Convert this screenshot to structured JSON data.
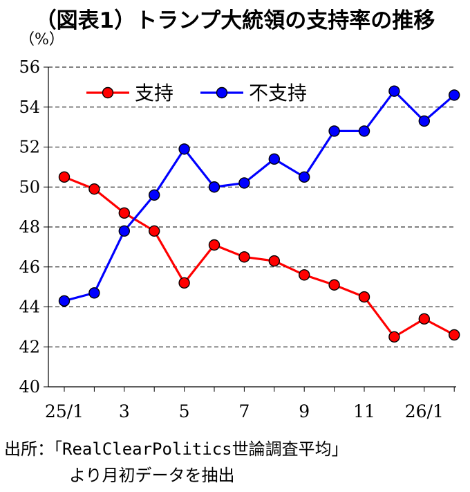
{
  "title": "（図表1）トランプ大統領の支持率の推移",
  "source_line1": "出所：「RealClearPolitics世論調査平均」",
  "source_line2": "より月初データを抽出",
  "chart_data": {
    "type": "line",
    "title": "（図表1）トランプ大統領の支持率の推移",
    "ylabel": "（%）",
    "xlabel": "",
    "ylim": [
      40,
      56
    ],
    "yticks": [
      40,
      42,
      44,
      46,
      48,
      50,
      52,
      54,
      56
    ],
    "x_tick_labels": [
      "25/1",
      "3",
      "5",
      "7",
      "9",
      "11",
      "26/1"
    ],
    "x_tick_indices": [
      0,
      2,
      4,
      6,
      8,
      10,
      12
    ],
    "grid": "horizontal dashed",
    "legend_placement": "top-left",
    "series": [
      {
        "name": "支持",
        "color": "#ff0000",
        "values": [
          50.5,
          49.9,
          48.7,
          47.8,
          45.2,
          47.1,
          46.5,
          46.3,
          45.6,
          45.1,
          44.5,
          42.5,
          43.4,
          42.6
        ]
      },
      {
        "name": "不支持",
        "color": "#0000ff",
        "values": [
          44.3,
          44.7,
          47.8,
          49.6,
          51.9,
          50.0,
          50.2,
          51.4,
          50.5,
          52.8,
          52.8,
          54.8,
          53.3,
          54.6
        ]
      }
    ]
  }
}
